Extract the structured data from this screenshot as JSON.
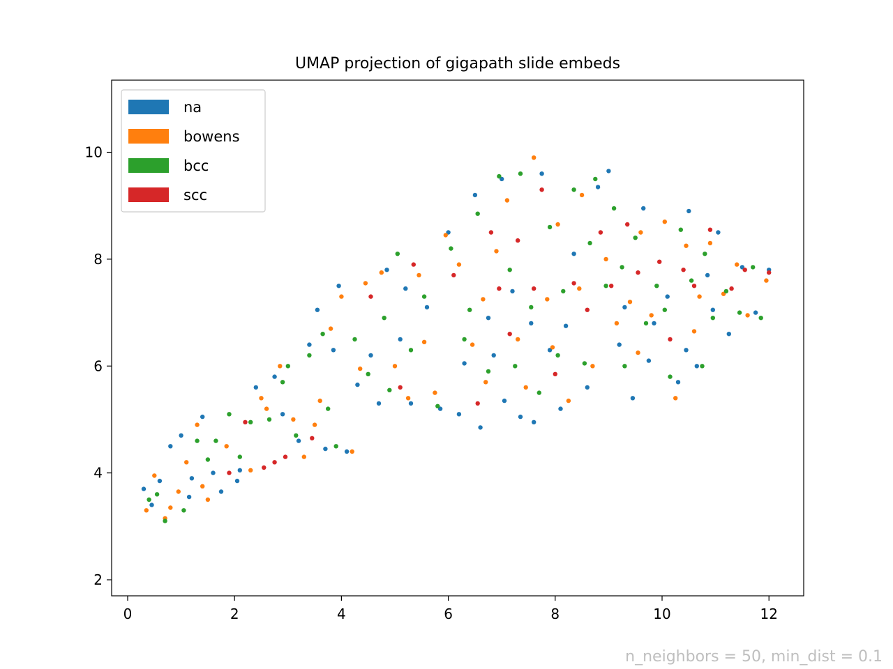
{
  "chart_data": {
    "type": "scatter",
    "title": "UMAP projection of gigapath slide embeds",
    "xlabel": "",
    "ylabel": "",
    "xlim": [
      -0.3,
      12.65
    ],
    "ylim": [
      1.7,
      11.35
    ],
    "xticks": [
      "0",
      "2",
      "4",
      "6",
      "8",
      "10",
      "12"
    ],
    "yticks": [
      "2",
      "4",
      "6",
      "8",
      "10"
    ],
    "grid": false,
    "legend_position": "top-left",
    "annotation": "n_neighbors = 50, min_dist = 0.1",
    "annotation_color": "#bfbfbf",
    "series": [
      {
        "name": "na",
        "color": "#1f77b4",
        "points": [
          [
            0.3,
            3.7
          ],
          [
            0.45,
            3.4
          ],
          [
            0.6,
            3.85
          ],
          [
            0.8,
            4.5
          ],
          [
            1.0,
            4.7
          ],
          [
            1.2,
            3.9
          ],
          [
            1.4,
            5.05
          ],
          [
            1.6,
            4.0
          ],
          [
            1.75,
            3.65
          ],
          [
            2.05,
            3.85
          ],
          [
            2.4,
            5.6
          ],
          [
            2.75,
            5.8
          ],
          [
            3.2,
            4.6
          ],
          [
            3.4,
            6.4
          ],
          [
            3.55,
            7.05
          ],
          [
            3.7,
            4.45
          ],
          [
            3.95,
            7.5
          ],
          [
            4.1,
            4.4
          ],
          [
            4.3,
            5.65
          ],
          [
            4.55,
            6.2
          ],
          [
            4.85,
            7.8
          ],
          [
            5.1,
            6.5
          ],
          [
            5.3,
            5.3
          ],
          [
            5.6,
            7.1
          ],
          [
            5.85,
            5.2
          ],
          [
            6.0,
            8.5
          ],
          [
            6.2,
            5.1
          ],
          [
            6.5,
            9.2
          ],
          [
            6.6,
            4.85
          ],
          [
            6.85,
            6.2
          ],
          [
            7.0,
            9.5
          ],
          [
            7.2,
            7.4
          ],
          [
            7.35,
            5.05
          ],
          [
            7.6,
            4.95
          ],
          [
            7.75,
            9.6
          ],
          [
            7.9,
            6.3
          ],
          [
            8.1,
            5.2
          ],
          [
            8.35,
            8.1
          ],
          [
            8.6,
            5.6
          ],
          [
            8.8,
            9.35
          ],
          [
            9.0,
            9.65
          ],
          [
            9.2,
            6.4
          ],
          [
            9.45,
            5.4
          ],
          [
            9.65,
            8.95
          ],
          [
            9.85,
            6.8
          ],
          [
            10.1,
            7.3
          ],
          [
            10.3,
            5.7
          ],
          [
            10.5,
            8.9
          ],
          [
            10.65,
            6.0
          ],
          [
            10.85,
            7.7
          ],
          [
            11.05,
            8.5
          ],
          [
            11.25,
            6.6
          ],
          [
            11.5,
            7.85
          ],
          [
            11.75,
            7.0
          ],
          [
            12.0,
            7.8
          ],
          [
            3.85,
            6.3
          ],
          [
            4.7,
            5.3
          ],
          [
            5.2,
            7.45
          ],
          [
            6.3,
            6.05
          ],
          [
            6.75,
            6.9
          ],
          [
            7.05,
            5.35
          ],
          [
            7.55,
            6.8
          ],
          [
            8.2,
            6.75
          ],
          [
            9.3,
            7.1
          ],
          [
            9.75,
            6.1
          ],
          [
            10.45,
            6.3
          ],
          [
            10.95,
            7.05
          ],
          [
            2.1,
            4.05
          ],
          [
            1.15,
            3.55
          ],
          [
            2.9,
            5.1
          ]
        ]
      },
      {
        "name": "bowens",
        "color": "#ff7f0e",
        "points": [
          [
            0.35,
            3.3
          ],
          [
            0.5,
            3.95
          ],
          [
            0.7,
            3.15
          ],
          [
            0.95,
            3.65
          ],
          [
            1.1,
            4.2
          ],
          [
            1.3,
            4.9
          ],
          [
            1.5,
            3.5
          ],
          [
            1.85,
            4.5
          ],
          [
            2.3,
            4.05
          ],
          [
            2.5,
            5.4
          ],
          [
            2.85,
            6.0
          ],
          [
            3.1,
            5.0
          ],
          [
            3.3,
            4.3
          ],
          [
            3.6,
            5.35
          ],
          [
            3.8,
            6.7
          ],
          [
            4.0,
            7.3
          ],
          [
            4.2,
            4.4
          ],
          [
            4.45,
            7.55
          ],
          [
            4.75,
            7.75
          ],
          [
            5.0,
            6.0
          ],
          [
            5.25,
            5.4
          ],
          [
            5.45,
            7.7
          ],
          [
            5.75,
            5.5
          ],
          [
            5.95,
            8.45
          ],
          [
            6.2,
            7.9
          ],
          [
            6.45,
            6.4
          ],
          [
            6.7,
            5.7
          ],
          [
            6.9,
            8.15
          ],
          [
            7.1,
            9.1
          ],
          [
            7.3,
            6.5
          ],
          [
            7.45,
            5.6
          ],
          [
            7.6,
            9.9
          ],
          [
            7.85,
            7.25
          ],
          [
            8.05,
            8.65
          ],
          [
            8.25,
            5.35
          ],
          [
            8.5,
            9.2
          ],
          [
            8.7,
            6.0
          ],
          [
            8.95,
            8.0
          ],
          [
            9.15,
            6.8
          ],
          [
            9.4,
            7.2
          ],
          [
            9.6,
            8.5
          ],
          [
            9.8,
            6.95
          ],
          [
            10.05,
            8.7
          ],
          [
            10.25,
            5.4
          ],
          [
            10.45,
            8.25
          ],
          [
            10.7,
            7.3
          ],
          [
            10.9,
            8.3
          ],
          [
            11.15,
            7.35
          ],
          [
            11.4,
            7.9
          ],
          [
            11.6,
            6.95
          ],
          [
            11.95,
            7.6
          ],
          [
            3.5,
            4.9
          ],
          [
            4.35,
            5.95
          ],
          [
            5.55,
            6.45
          ],
          [
            6.65,
            7.25
          ],
          [
            7.95,
            6.35
          ],
          [
            8.45,
            7.45
          ],
          [
            9.55,
            6.25
          ],
          [
            10.6,
            6.65
          ],
          [
            0.8,
            3.35
          ],
          [
            1.4,
            3.75
          ],
          [
            2.6,
            5.2
          ]
        ]
      },
      {
        "name": "bcc",
        "color": "#2ca02c",
        "points": [
          [
            0.4,
            3.5
          ],
          [
            0.7,
            3.1
          ],
          [
            1.05,
            3.3
          ],
          [
            1.3,
            4.6
          ],
          [
            1.5,
            4.25
          ],
          [
            1.9,
            5.1
          ],
          [
            2.1,
            4.3
          ],
          [
            2.65,
            5.0
          ],
          [
            2.9,
            5.7
          ],
          [
            3.15,
            4.7
          ],
          [
            3.4,
            6.2
          ],
          [
            3.65,
            6.6
          ],
          [
            3.9,
            4.5
          ],
          [
            4.25,
            6.5
          ],
          [
            4.5,
            5.85
          ],
          [
            4.8,
            6.9
          ],
          [
            5.05,
            8.1
          ],
          [
            5.3,
            6.3
          ],
          [
            5.55,
            7.3
          ],
          [
            5.8,
            5.25
          ],
          [
            6.05,
            8.2
          ],
          [
            6.3,
            6.5
          ],
          [
            6.55,
            8.85
          ],
          [
            6.75,
            5.9
          ],
          [
            6.95,
            9.55
          ],
          [
            7.15,
            7.8
          ],
          [
            7.35,
            9.6
          ],
          [
            7.55,
            7.1
          ],
          [
            7.7,
            5.5
          ],
          [
            7.9,
            8.6
          ],
          [
            8.15,
            7.4
          ],
          [
            8.35,
            9.3
          ],
          [
            8.55,
            6.05
          ],
          [
            8.75,
            9.5
          ],
          [
            8.95,
            7.5
          ],
          [
            9.1,
            8.95
          ],
          [
            9.3,
            6.0
          ],
          [
            9.5,
            8.4
          ],
          [
            9.7,
            6.8
          ],
          [
            9.9,
            7.5
          ],
          [
            10.15,
            5.8
          ],
          [
            10.35,
            8.55
          ],
          [
            10.55,
            7.6
          ],
          [
            10.75,
            6.0
          ],
          [
            10.95,
            6.9
          ],
          [
            11.2,
            7.4
          ],
          [
            11.45,
            7.0
          ],
          [
            11.7,
            7.85
          ],
          [
            11.85,
            6.9
          ],
          [
            3.0,
            6.0
          ],
          [
            3.75,
            5.2
          ],
          [
            4.9,
            5.55
          ],
          [
            6.4,
            7.05
          ],
          [
            7.25,
            6.0
          ],
          [
            8.05,
            6.2
          ],
          [
            8.65,
            8.3
          ],
          [
            9.25,
            7.85
          ],
          [
            10.05,
            7.05
          ],
          [
            10.8,
            8.1
          ],
          [
            0.55,
            3.6
          ],
          [
            1.65,
            4.6
          ],
          [
            2.3,
            4.95
          ]
        ]
      },
      {
        "name": "scc",
        "color": "#d62728",
        "points": [
          [
            1.9,
            4.0
          ],
          [
            2.2,
            4.95
          ],
          [
            2.55,
            4.1
          ],
          [
            2.75,
            4.2
          ],
          [
            2.95,
            4.3
          ],
          [
            3.45,
            4.65
          ],
          [
            4.55,
            7.3
          ],
          [
            5.1,
            5.6
          ],
          [
            5.35,
            7.9
          ],
          [
            6.1,
            7.7
          ],
          [
            6.55,
            5.3
          ],
          [
            6.95,
            7.45
          ],
          [
            7.3,
            8.35
          ],
          [
            7.6,
            7.45
          ],
          [
            7.75,
            9.3
          ],
          [
            8.0,
            5.85
          ],
          [
            8.35,
            7.55
          ],
          [
            8.85,
            8.5
          ],
          [
            9.05,
            7.5
          ],
          [
            9.55,
            7.75
          ],
          [
            9.95,
            7.95
          ],
          [
            10.15,
            6.5
          ],
          [
            10.4,
            7.8
          ],
          [
            10.6,
            7.5
          ],
          [
            10.9,
            8.55
          ],
          [
            11.3,
            7.45
          ],
          [
            11.55,
            7.8
          ],
          [
            12.0,
            7.75
          ],
          [
            6.8,
            8.5
          ],
          [
            7.15,
            6.6
          ],
          [
            8.6,
            7.05
          ],
          [
            9.35,
            8.65
          ]
        ]
      }
    ]
  }
}
